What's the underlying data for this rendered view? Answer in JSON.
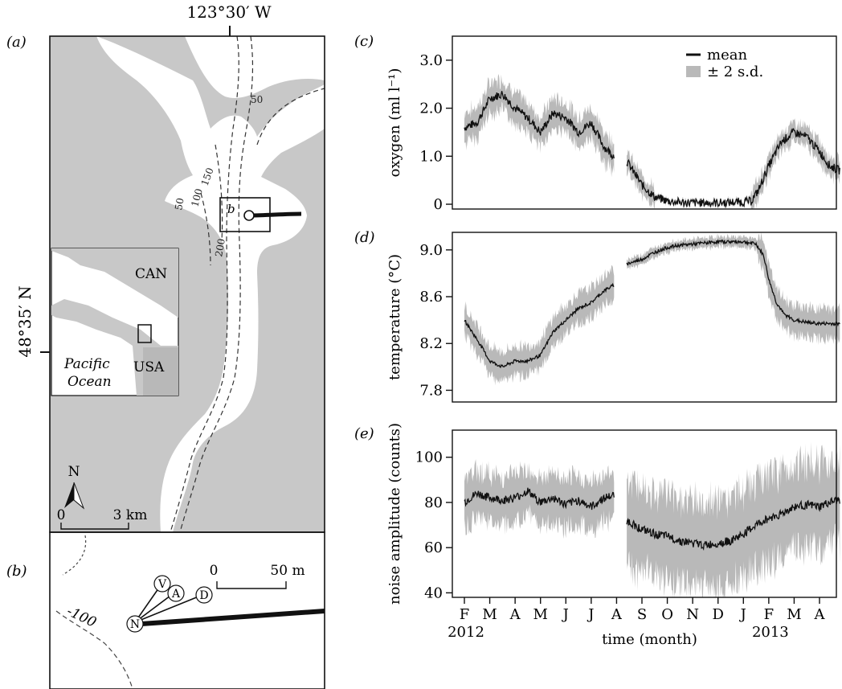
{
  "map": {
    "panel_a_label": "(a)",
    "panel_b_label": "(b)",
    "longitude_label": "123°30′ W",
    "latitude_label": "48°35′ N",
    "inset": {
      "can_label": "CAN",
      "usa_label": "USA",
      "ocean_label_line1": "Pacific",
      "ocean_label_line2": "Ocean"
    },
    "box_b_label": "b",
    "depth_contours": [
      "50",
      "50",
      "100",
      "150",
      "200"
    ],
    "north_label": "N",
    "scale_0": "0",
    "scale_3km": "3 km",
    "panel_b": {
      "scale_0": "0",
      "scale_50m": "50 m",
      "contour_label": "-100",
      "nodes": [
        "V",
        "A",
        "D",
        "N"
      ]
    },
    "colors": {
      "land": "#c8c8c8",
      "water": "#ffffff",
      "cable": "#111111"
    }
  },
  "chart_data": [
    {
      "panel_label": "(c)",
      "type": "line",
      "ylabel": "oxygen (ml l⁻¹)",
      "ylim": [
        -0.1,
        3.5
      ],
      "yticks": [
        "0",
        "1.0",
        "2.0",
        "3.0"
      ],
      "ytick_values": [
        0,
        1.0,
        2.0,
        3.0
      ],
      "legend": {
        "placement": "top-right",
        "entries": [
          "mean",
          "± 2 s.d."
        ]
      },
      "series": [
        {
          "name": "mean",
          "x_month": [
            0.0,
            0.5,
            1.0,
            1.5,
            2.0,
            2.5,
            3.0,
            3.5,
            4.0,
            4.5,
            5.0,
            5.5,
            5.9
          ],
          "values": [
            1.6,
            1.7,
            2.2,
            2.3,
            2.0,
            1.8,
            1.5,
            1.9,
            1.8,
            1.5,
            1.7,
            1.2,
            1.0
          ]
        },
        {
          "name": "mean",
          "x_month": [
            6.4,
            7.0,
            7.5,
            8.0,
            8.5,
            9.0,
            9.5,
            10.0,
            10.5,
            11.0,
            11.3,
            11.6,
            12.0,
            12.5,
            13.0,
            13.5,
            14.0,
            14.4,
            14.8
          ],
          "values": [
            0.9,
            0.4,
            0.15,
            0.07,
            0.04,
            0.03,
            0.03,
            0.03,
            0.04,
            0.05,
            0.06,
            0.3,
            0.8,
            1.3,
            1.5,
            1.4,
            1.1,
            0.8,
            0.7
          ]
        }
      ],
      "sd": [
        0.3,
        0.2
      ]
    },
    {
      "panel_label": "(d)",
      "type": "line",
      "ylabel": "temperature (°C)",
      "ylim": [
        7.7,
        9.15
      ],
      "yticks": [
        "7.8",
        "8.2",
        "8.6",
        "9.0"
      ],
      "ytick_values": [
        7.8,
        8.2,
        8.6,
        9.0
      ],
      "series": [
        {
          "name": "mean",
          "x_month": [
            0.0,
            0.3,
            0.6,
            1.0,
            1.5,
            2.0,
            2.5,
            3.0,
            3.5,
            4.0,
            4.5,
            5.0,
            5.5,
            5.9
          ],
          "values": [
            8.4,
            8.3,
            8.2,
            8.05,
            8.0,
            8.05,
            8.05,
            8.1,
            8.3,
            8.4,
            8.5,
            8.55,
            8.65,
            8.7
          ]
        },
        {
          "name": "mean",
          "x_month": [
            6.4,
            7.0,
            7.5,
            8.0,
            8.5,
            9.0,
            9.5,
            10.0,
            10.5,
            11.0,
            11.5,
            11.8,
            12.0,
            12.3,
            12.6,
            13.0,
            13.5,
            14.0,
            14.4,
            14.8
          ],
          "values": [
            8.88,
            8.92,
            8.98,
            9.02,
            9.04,
            9.05,
            9.06,
            9.07,
            9.07,
            9.07,
            9.05,
            8.95,
            8.75,
            8.55,
            8.45,
            8.4,
            8.38,
            8.37,
            8.37,
            8.37
          ]
        }
      ],
      "sd": [
        0.12,
        0.04
      ]
    },
    {
      "panel_label": "(e)",
      "type": "line",
      "ylabel": "noise amplitude (counts)",
      "ylim": [
        38,
        112
      ],
      "yticks": [
        "40",
        "60",
        "80",
        "100"
      ],
      "ytick_values": [
        40,
        60,
        80,
        100
      ],
      "xlabel": "time (month)",
      "x_ticks": [
        "F",
        "M",
        "A",
        "M",
        "J",
        "J",
        "A",
        "S",
        "O",
        "N",
        "D",
        "J",
        "F",
        "M",
        "A"
      ],
      "year_labels": [
        {
          "label": "2012",
          "month_index": 0
        },
        {
          "label": "2013",
          "month_index": 12
        }
      ],
      "series": [
        {
          "name": "mean",
          "x_month": [
            0.0,
            0.5,
            1.0,
            1.5,
            2.0,
            2.5,
            3.0,
            3.5,
            4.0,
            4.5,
            5.0,
            5.5,
            5.9
          ],
          "values": [
            80,
            84,
            82,
            81,
            82,
            85,
            80,
            82,
            79,
            81,
            78,
            82,
            83
          ]
        },
        {
          "name": "mean",
          "x_month": [
            6.4,
            7.0,
            7.5,
            8.0,
            8.5,
            9.0,
            9.5,
            10.0,
            10.5,
            11.0,
            11.5,
            12.0,
            12.5,
            13.0,
            13.5,
            14.0,
            14.4,
            14.8
          ],
          "values": [
            72,
            68,
            66,
            65,
            63,
            62,
            61,
            62,
            63,
            66,
            70,
            73,
            75,
            78,
            79,
            78,
            80,
            81
          ]
        }
      ],
      "sd": [
        10,
        18
      ]
    }
  ]
}
